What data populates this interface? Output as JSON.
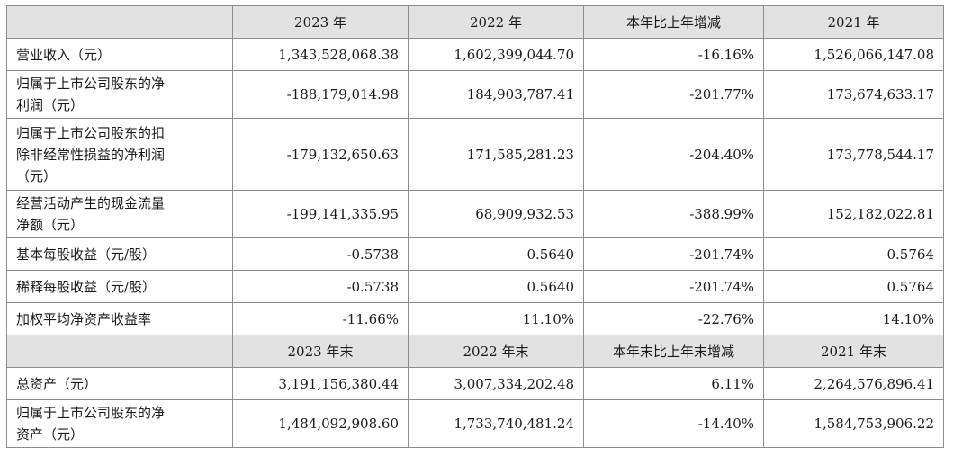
{
  "header_1": [
    "2023 年",
    "2022 年",
    "本年比上年增减",
    "2021 年"
  ],
  "header_2": [
    "2023 年末",
    "2022 年末",
    "本年末比上年末增减",
    "2021 年末"
  ],
  "rows_1": [
    {
      "label": "营业收入（元）",
      "values": [
        "1,343,528,068.38",
        "1,602,399,044.70",
        "-16.16%",
        "1,526,066,147.08"
      ]
    },
    {
      "label": "归属于上市公司股东的净\n利润（元）",
      "values": [
        "-188,179,014.98",
        "184,903,787.41",
        "-201.77%",
        "173,674,633.17"
      ]
    },
    {
      "label": "归属于上市公司股东的扣\n除非经常性损益的净利润\n（元）",
      "values": [
        "-179,132,650.63",
        "171,585,281.23",
        "-204.40%",
        "173,778,544.17"
      ]
    },
    {
      "label": "经营活动产生的现金流量\n净额（元）",
      "values": [
        "-199,141,335.95",
        "68,909,932.53",
        "-388.99%",
        "152,182,022.81"
      ]
    },
    {
      "label": "基本每股收益（元/股）",
      "values": [
        "-0.5738",
        "0.5640",
        "-201.74%",
        "0.5764"
      ]
    },
    {
      "label": "稀释每股收益（元/股）",
      "values": [
        "-0.5738",
        "0.5640",
        "-201.74%",
        "0.5764"
      ]
    },
    {
      "label": "加权平均净资产收益率",
      "values": [
        "-11.66%",
        "11.10%",
        "-22.76%",
        "14.10%"
      ]
    }
  ],
  "rows_2": [
    {
      "label": "总资产（元）",
      "values": [
        "3,191,156,380.44",
        "3,007,334,202.48",
        "6.11%",
        "2,264,576,896.41"
      ]
    },
    {
      "label": "归属于上市公司股东的净\n资产（元）",
      "values": [
        "1,484,092,908.60",
        "1,733,740,481.24",
        "-14.40%",
        "1,584,753,906.22"
      ]
    }
  ]
}
